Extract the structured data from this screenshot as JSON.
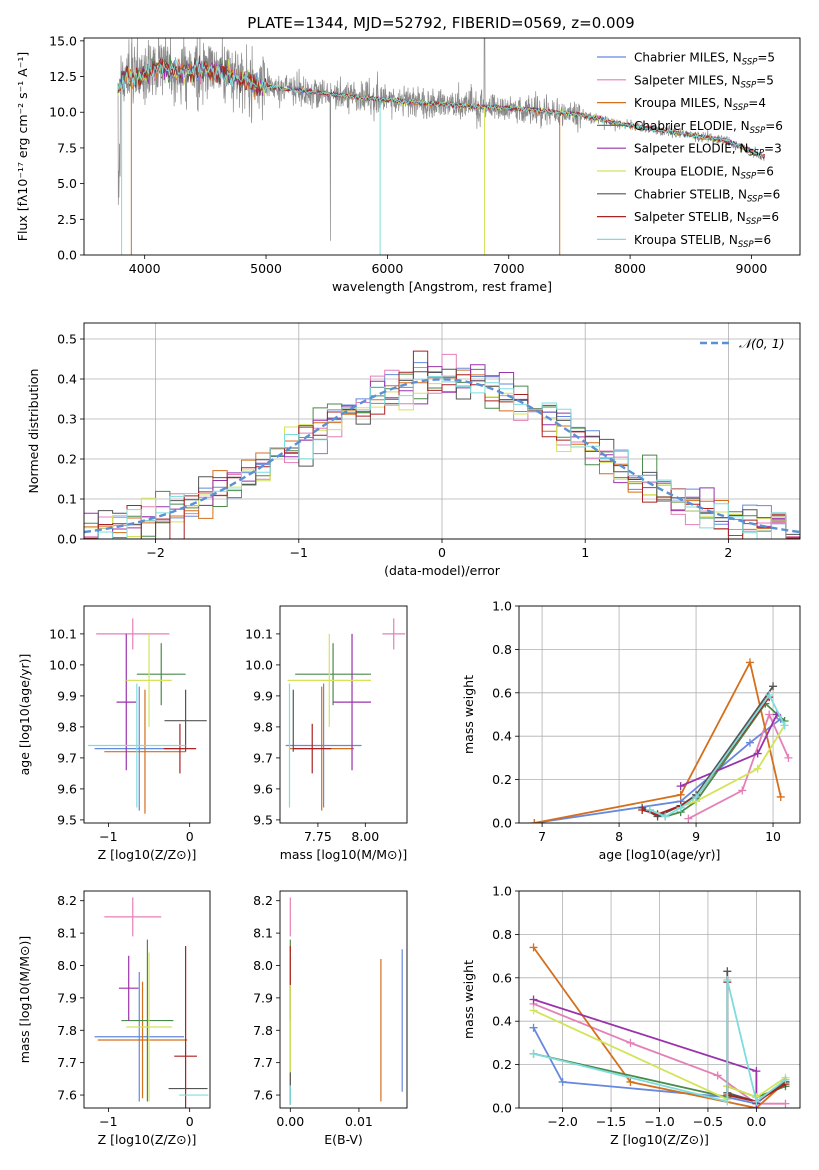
{
  "figure": {
    "title": "PLATE=1344, MJD=52792, FIBERID=0569, z=0.009"
  },
  "colors": {
    "Chabrier MILES": "#6688dd",
    "Salpeter MILES": "#e57fb8",
    "Kroupa MILES": "#d46f1c",
    "Chabrier ELODIE": "#4a8a4a",
    "Salpeter ELODIE": "#9933aa",
    "Kroupa ELODIE": "#d4e35a",
    "Chabrier STELIB": "#555555",
    "Salpeter STELIB": "#aa2222",
    "Kroupa STELIB": "#7fdcdc",
    "data": "#8a8a8a",
    "gaussian": "#5b8fd6"
  },
  "chart_data": [
    {
      "id": "spectrum",
      "type": "line",
      "title": "PLATE=1344, MJD=52792, FIBERID=0569, z=0.009",
      "xlabel": "wavelength [Angstrom, rest frame]",
      "ylabel": "Flux [fλ10⁻¹⁷ erg cm⁻² s⁻¹ A⁻¹]",
      "xlim": [
        3500,
        9400
      ],
      "ylim": [
        0,
        15.2
      ],
      "xticks": [
        4000,
        5000,
        6000,
        7000,
        8000,
        9000
      ],
      "yticks": [
        0.0,
        2.5,
        5.0,
        7.5,
        10.0,
        12.5,
        15.0
      ],
      "legend": "upper-right",
      "legend_entries": [
        "Chabrier MILES, N_SSP=5",
        "Salpeter MILES, N_SSP=5",
        "Kroupa MILES, N_SSP=4",
        "Chabrier ELODIE, N_SSP=6",
        "Salpeter ELODIE, N_SSP=3",
        "Kroupa ELODIE, N_SSP=6",
        "Chabrier STELIB, N_SSP=6",
        "Salpeter STELIB, N_SSP=6",
        "Kroupa STELIB, N_SSP=6"
      ],
      "continuum": {
        "x": [
          3780,
          3850,
          3950,
          4050,
          4150,
          4300,
          4500,
          4700,
          4900,
          5200,
          5500,
          5800,
          6100,
          6400,
          6700,
          7000,
          7300,
          7600,
          7900,
          8200,
          8500,
          8800,
          9100
        ],
        "y": [
          11.5,
          12.5,
          12.3,
          13.0,
          13.2,
          12.8,
          12.9,
          12.6,
          11.9,
          11.6,
          11.3,
          11.0,
          10.8,
          10.6,
          10.4,
          10.3,
          10.1,
          9.8,
          9.2,
          8.8,
          8.4,
          8.0,
          6.9
        ]
      }
    },
    {
      "id": "residuals",
      "type": "histogram",
      "xlabel": "(data-model)/error",
      "ylabel": "Normed distribution",
      "xlim": [
        -2.5,
        2.5
      ],
      "ylim": [
        0,
        0.54
      ],
      "xticks": [
        -2,
        -1,
        0,
        1,
        2
      ],
      "yticks": [
        0.0,
        0.1,
        0.2,
        0.3,
        0.4,
        0.5
      ],
      "legend": "upper-right",
      "legend_label": "𝒩(0, 1)",
      "bin_width": 0.1
    },
    {
      "id": "age-vs-z",
      "type": "errorbar",
      "xlabel": "Z [log10(Z/Z⊙)]",
      "ylabel": "age  [log10(age/yr)]",
      "xlim": [
        -1.3,
        0.25
      ],
      "ylim": [
        9.49,
        10.19
      ],
      "xticks": [
        -1,
        0
      ],
      "yticks": [
        9.5,
        9.6,
        9.7,
        9.8,
        9.9,
        10.0,
        10.1
      ],
      "points": [
        {
          "series": "Chabrier MILES",
          "x": -0.62,
          "xerr": 0.55,
          "y": 9.73,
          "yerr": 0.2
        },
        {
          "series": "Salpeter MILES",
          "x": -0.7,
          "xerr": 0.45,
          "y": 10.1,
          "yerr": 0.05
        },
        {
          "series": "Kroupa MILES",
          "x": -0.55,
          "xerr": 0.5,
          "y": 9.72,
          "yerr": 0.2
        },
        {
          "series": "Chabrier ELODIE",
          "x": -0.35,
          "xerr": 0.3,
          "y": 9.97,
          "yerr": 0.1
        },
        {
          "series": "Salpeter ELODIE",
          "x": -0.78,
          "xerr": 0.12,
          "y": 9.88,
          "yerr": 0.22
        },
        {
          "series": "Kroupa ELODIE",
          "x": -0.5,
          "xerr": 0.28,
          "y": 9.95,
          "yerr": 0.15
        },
        {
          "series": "Chabrier STELIB",
          "x": -0.05,
          "xerr": 0.26,
          "y": 9.82,
          "yerr": 0.1
        },
        {
          "series": "Salpeter STELIB",
          "x": -0.12,
          "xerr": 0.2,
          "y": 9.73,
          "yerr": 0.08
        },
        {
          "series": "Kroupa STELIB",
          "x": -0.65,
          "xerr": 0.6,
          "y": 9.74,
          "yerr": 0.2
        }
      ]
    },
    {
      "id": "age-vs-mass",
      "type": "errorbar",
      "xlabel": "mass [log10(M/M⊙)]",
      "ylabel": "",
      "xlim": [
        7.55,
        8.22
      ],
      "ylim": [
        9.49,
        10.19
      ],
      "xticks": [
        7.75,
        8.0
      ],
      "yticks": [
        9.5,
        9.6,
        9.7,
        9.8,
        9.9,
        10.0,
        10.1
      ],
      "points": [
        {
          "series": "Chabrier MILES",
          "x": 7.78,
          "xerr": 0.2,
          "y": 9.74,
          "yerr": 0.2
        },
        {
          "series": "Salpeter MILES",
          "x": 8.15,
          "xerr": 0.06,
          "y": 10.1,
          "yerr": 0.05
        },
        {
          "series": "Kroupa MILES",
          "x": 7.77,
          "xerr": 0.17,
          "y": 9.73,
          "yerr": 0.2
        },
        {
          "series": "Chabrier ELODIE",
          "x": 7.83,
          "xerr": 0.2,
          "y": 9.97,
          "yerr": 0.1
        },
        {
          "series": "Salpeter ELODIE",
          "x": 7.93,
          "xerr": 0.1,
          "y": 9.88,
          "yerr": 0.22
        },
        {
          "series": "Kroupa ELODIE",
          "x": 7.81,
          "xerr": 0.22,
          "y": 9.95,
          "yerr": 0.15
        },
        {
          "series": "Chabrier STELIB",
          "x": 7.62,
          "xerr": 0.0,
          "y": 9.82,
          "yerr": 0.1
        },
        {
          "series": "Salpeter STELIB",
          "x": 7.72,
          "xerr": 0.1,
          "y": 9.73,
          "yerr": 0.08
        },
        {
          "series": "Kroupa STELIB",
          "x": 7.6,
          "xerr": 0.0,
          "y": 9.74,
          "yerr": 0.2
        }
      ]
    },
    {
      "id": "weight-vs-age",
      "type": "line",
      "xlabel": "age  [log10(age/yr)]",
      "ylabel": "mass weight",
      "xlim": [
        6.7,
        10.35
      ],
      "ylim": [
        0,
        1.0
      ],
      "xticks": [
        7,
        8,
        9,
        10
      ],
      "yticks": [
        0.0,
        0.2,
        0.4,
        0.6,
        0.8,
        1.0
      ],
      "series": [
        {
          "color_key": "Chabrier MILES",
          "x": [
            6.9,
            8.8,
            9.7,
            10.1
          ],
          "y": [
            0.0,
            0.1,
            0.37,
            0.48
          ]
        },
        {
          "color_key": "Salpeter MILES",
          "x": [
            8.9,
            9.6,
            9.95,
            10.2
          ],
          "y": [
            0.02,
            0.15,
            0.5,
            0.3
          ]
        },
        {
          "color_key": "Kroupa MILES",
          "x": [
            6.9,
            8.8,
            9.7,
            10.1
          ],
          "y": [
            0.0,
            0.13,
            0.74,
            0.12
          ]
        },
        {
          "color_key": "Chabrier ELODIE",
          "x": [
            8.4,
            8.6,
            8.8,
            9.0,
            9.9,
            10.15
          ],
          "y": [
            0.06,
            0.03,
            0.05,
            0.1,
            0.55,
            0.47
          ]
        },
        {
          "color_key": "Salpeter ELODIE",
          "x": [
            8.8,
            9.8,
            10.05
          ],
          "y": [
            0.17,
            0.32,
            0.5
          ]
        },
        {
          "color_key": "Kroupa ELODIE",
          "x": [
            8.5,
            9.0,
            9.8,
            10.15
          ],
          "y": [
            0.04,
            0.1,
            0.25,
            0.45
          ]
        },
        {
          "color_key": "Chabrier STELIB",
          "x": [
            8.3,
            8.5,
            8.8,
            9.0,
            10.0
          ],
          "y": [
            0.07,
            0.03,
            0.08,
            0.13,
            0.63
          ]
        },
        {
          "color_key": "Salpeter STELIB",
          "x": [
            8.3,
            8.5,
            8.8,
            9.0,
            9.95
          ],
          "y": [
            0.06,
            0.04,
            0.08,
            0.12,
            0.58
          ]
        },
        {
          "color_key": "Kroupa STELIB",
          "x": [
            8.4,
            8.6,
            8.8,
            9.0,
            9.95,
            10.15
          ],
          "y": [
            0.06,
            0.03,
            0.07,
            0.12,
            0.59,
            0.45
          ]
        }
      ]
    },
    {
      "id": "mass-vs-z",
      "type": "errorbar",
      "xlabel": "Z [log10(Z/Z⊙)]",
      "ylabel": "mass [log10(M/M⊙)]",
      "xlim": [
        -1.3,
        0.25
      ],
      "ylim": [
        7.56,
        8.23
      ],
      "xticks": [
        -1,
        0
      ],
      "yticks": [
        7.6,
        7.7,
        7.8,
        7.9,
        8.0,
        8.1,
        8.2
      ],
      "points": [
        {
          "series": "Chabrier MILES",
          "x": -0.62,
          "xerr": 0.55,
          "y": 7.78,
          "yerr": 0.2
        },
        {
          "series": "Salpeter MILES",
          "x": -0.7,
          "xerr": 0.35,
          "y": 8.15,
          "yerr": 0.06
        },
        {
          "series": "Kroupa MILES",
          "x": -0.58,
          "xerr": 0.55,
          "y": 7.77,
          "yerr": 0.18
        },
        {
          "series": "Chabrier ELODIE",
          "x": -0.52,
          "xerr": 0.32,
          "y": 7.83,
          "yerr": 0.25
        },
        {
          "series": "Salpeter ELODIE",
          "x": -0.75,
          "xerr": 0.12,
          "y": 7.93,
          "yerr": 0.1
        },
        {
          "series": "Kroupa ELODIE",
          "x": -0.5,
          "xerr": 0.28,
          "y": 7.81,
          "yerr": 0.23
        },
        {
          "series": "Chabrier STELIB",
          "x": -0.02,
          "xerr": 0.24,
          "y": 7.62,
          "yerr": 0.0
        },
        {
          "series": "Salpeter STELIB",
          "x": -0.05,
          "xerr": 0.14,
          "y": 7.72,
          "yerr": 0.34
        },
        {
          "series": "Kroupa STELIB",
          "x": 0.05,
          "xerr": 0.18,
          "y": 7.6,
          "yerr": 0.0
        }
      ]
    },
    {
      "id": "mass-vs-ebv",
      "type": "errorbar",
      "xlabel": "E(B-V)",
      "ylabel": "",
      "xlim": [
        -0.0015,
        0.017
      ],
      "ylim": [
        7.56,
        8.23
      ],
      "xticks": [
        0.0,
        0.01
      ],
      "xtick_labels": [
        "0.00",
        "0.01"
      ],
      "yticks": [
        7.6,
        7.7,
        7.8,
        7.9,
        8.0,
        8.1,
        8.2
      ],
      "points": [
        {
          "series": "Chabrier MILES",
          "x": 0.0163,
          "xerr": 0,
          "y": 7.83,
          "yerr": 0.22
        },
        {
          "series": "Salpeter MILES",
          "x": 0.0,
          "xerr": 0,
          "y": 8.15,
          "yerr": 0.06
        },
        {
          "series": "Kroupa MILES",
          "x": 0.0132,
          "xerr": 0,
          "y": 7.8,
          "yerr": 0.22
        },
        {
          "series": "Chabrier ELODIE",
          "x": 0.0,
          "xerr": 0,
          "y": 7.83,
          "yerr": 0.25
        },
        {
          "series": "Salpeter ELODIE",
          "x": 0.0,
          "xerr": 0,
          "y": 7.93,
          "yerr": 0.1
        },
        {
          "series": "Kroupa ELODIE",
          "x": 0.0,
          "xerr": 0,
          "y": 7.81,
          "yerr": 0.23
        },
        {
          "series": "Chabrier STELIB",
          "x": 0.0,
          "xerr": 0,
          "y": 7.62,
          "yerr": 0.05
        },
        {
          "series": "Salpeter STELIB",
          "x": 0.0,
          "xerr": 0,
          "y": 8.0,
          "yerr": 0.06
        },
        {
          "series": "Kroupa STELIB",
          "x": 0.0,
          "xerr": 0,
          "y": 7.6,
          "yerr": 0.03
        }
      ]
    },
    {
      "id": "weight-vs-z",
      "type": "line",
      "xlabel": "Z [log10(Z/Z⊙)]",
      "ylabel": "mass weight",
      "xlim": [
        -2.45,
        0.45
      ],
      "ylim": [
        0,
        1.0
      ],
      "xticks": [
        -2.0,
        -1.5,
        -1.0,
        -0.5,
        0.0
      ],
      "xtick_labels": [
        "−2.0",
        "−1.5",
        "−1.0",
        "−0.5",
        "0.0"
      ],
      "yticks": [
        0.0,
        0.2,
        0.4,
        0.6,
        0.8,
        1.0
      ],
      "series": [
        {
          "color_key": "Chabrier MILES",
          "x": [
            -2.3,
            -2.0,
            -0.3,
            0.0,
            0.3
          ],
          "y": [
            0.37,
            0.12,
            0.05,
            0.02,
            0.13
          ]
        },
        {
          "color_key": "Salpeter MILES",
          "x": [
            -2.3,
            -1.3,
            -0.4,
            0.0,
            0.3
          ],
          "y": [
            0.48,
            0.3,
            0.15,
            0.02,
            0.02
          ]
        },
        {
          "color_key": "Kroupa MILES",
          "x": [
            -2.3,
            -1.3,
            0.0,
            0.3
          ],
          "y": [
            0.74,
            0.12,
            0.0,
            0.12
          ]
        },
        {
          "color_key": "Chabrier ELODIE",
          "x": [
            -2.3,
            -0.3,
            -0.3,
            0.0,
            0.3
          ],
          "y": [
            0.25,
            0.05,
            0.1,
            0.05,
            0.1
          ]
        },
        {
          "color_key": "Salpeter ELODIE",
          "x": [
            -2.3,
            0.0,
            0.0
          ],
          "y": [
            0.5,
            0.17,
            0.02
          ]
        },
        {
          "color_key": "Kroupa ELODIE",
          "x": [
            -2.3,
            -0.3,
            -0.3,
            0.0,
            0.3
          ],
          "y": [
            0.45,
            0.04,
            0.1,
            0.05,
            0.14
          ]
        },
        {
          "color_key": "Chabrier STELIB",
          "x": [
            -0.3,
            -0.3,
            0.0,
            0.3
          ],
          "y": [
            0.63,
            0.07,
            0.03,
            0.12
          ]
        },
        {
          "color_key": "Salpeter STELIB",
          "x": [
            -0.3,
            -0.3,
            0.0,
            0.3
          ],
          "y": [
            0.58,
            0.06,
            0.03,
            0.11
          ]
        },
        {
          "color_key": "Kroupa STELIB",
          "x": [
            -2.3,
            -0.3,
            -0.3,
            0.0,
            0.3
          ],
          "y": [
            0.25,
            0.03,
            0.59,
            0.03,
            0.13
          ]
        }
      ]
    }
  ]
}
